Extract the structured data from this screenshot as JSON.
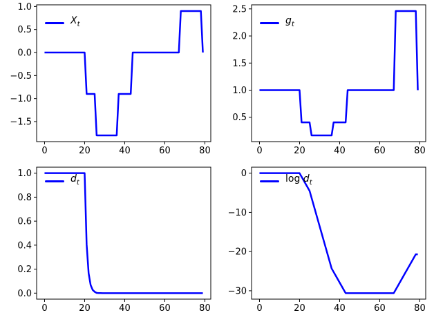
{
  "figure": {
    "background": "#ffffff",
    "line_color": "#0000ff",
    "line_width": 2.5,
    "spine_color": "#000000",
    "tick_label_color": "#000000"
  },
  "chart_data": {
    "type": "line",
    "layout_grid": "2x2",
    "grid": false,
    "legend_position": "upper left",
    "x": [
      0,
      1,
      2,
      3,
      4,
      5,
      6,
      7,
      8,
      9,
      10,
      11,
      12,
      13,
      14,
      15,
      16,
      17,
      18,
      19,
      20,
      21,
      22,
      23,
      24,
      25,
      26,
      27,
      28,
      29,
      30,
      31,
      32,
      33,
      34,
      35,
      36,
      37,
      38,
      39,
      40,
      41,
      42,
      43,
      44,
      45,
      46,
      47,
      48,
      49,
      50,
      51,
      52,
      53,
      54,
      55,
      56,
      57,
      58,
      59,
      60,
      61,
      62,
      63,
      64,
      65,
      66,
      67,
      68,
      69,
      70,
      71,
      72,
      73,
      74,
      75,
      76,
      77,
      78,
      79
    ],
    "xlim": [
      -3.95,
      82.95
    ],
    "xticks": {
      "values": [
        0,
        20,
        40,
        60,
        80
      ],
      "labels": [
        "0",
        "20",
        "40",
        "60",
        "80"
      ]
    },
    "plots": [
      {
        "name": "X_t",
        "legend": {
          "prefix": "",
          "symbol": "X",
          "subscript": "t"
        },
        "ylim": [
          -1.935,
          1.035
        ],
        "yticks": {
          "values": [
            1.0,
            0.5,
            0.0,
            -0.5,
            -1.0,
            -1.5
          ],
          "labels": [
            "1.0",
            "0.5",
            "0.0",
            "−0.5",
            "−1.0",
            "−1.5"
          ]
        },
        "y": [
          0,
          0,
          0,
          0,
          0,
          0,
          0,
          0,
          0,
          0,
          0,
          0,
          0,
          0,
          0,
          0,
          0,
          0,
          0,
          0,
          0,
          -0.9,
          -0.9,
          -0.9,
          -0.9,
          -0.9,
          -1.8,
          -1.8,
          -1.8,
          -1.8,
          -1.8,
          -1.8,
          -1.8,
          -1.8,
          -1.8,
          -1.8,
          -1.8,
          -0.9,
          -0.9,
          -0.9,
          -0.9,
          -0.9,
          -0.9,
          -0.9,
          0,
          0,
          0,
          0,
          0,
          0,
          0,
          0,
          0,
          0,
          0,
          0,
          0,
          0,
          0,
          0,
          0,
          0,
          0,
          0,
          0,
          0,
          0,
          0,
          0.9,
          0.9,
          0.9,
          0.9,
          0.9,
          0.9,
          0.9,
          0.9,
          0.9,
          0.9,
          0.9,
          0
        ]
      },
      {
        "name": "g_t",
        "legend": {
          "prefix": "",
          "symbol": "g",
          "subscript": "t"
        },
        "ylim": [
          0.0506,
          2.5743
        ],
        "yticks": {
          "values": [
            2.5,
            2.0,
            1.5,
            1.0,
            0.5
          ],
          "labels": [
            "2.5",
            "2.0",
            "1.5",
            "1.0",
            "0.5"
          ]
        },
        "y": [
          1,
          1,
          1,
          1,
          1,
          1,
          1,
          1,
          1,
          1,
          1,
          1,
          1,
          1,
          1,
          1,
          1,
          1,
          1,
          1,
          1,
          0.40657,
          0.40657,
          0.40657,
          0.40657,
          0.40657,
          0.1653,
          0.1653,
          0.1653,
          0.1653,
          0.1653,
          0.1653,
          0.1653,
          0.1653,
          0.1653,
          0.1653,
          0.1653,
          0.40657,
          0.40657,
          0.40657,
          0.40657,
          0.40657,
          0.40657,
          0.40657,
          1,
          1,
          1,
          1,
          1,
          1,
          1,
          1,
          1,
          1,
          1,
          1,
          1,
          1,
          1,
          1,
          1,
          1,
          1,
          1,
          1,
          1,
          1,
          1,
          2.4596,
          2.4596,
          2.4596,
          2.4596,
          2.4596,
          2.4596,
          2.4596,
          2.4596,
          2.4596,
          2.4596,
          2.4596,
          1
        ]
      },
      {
        "name": "d_t",
        "legend": {
          "prefix": "",
          "symbol": "d",
          "subscript": "t"
        },
        "ylim": [
          -0.05,
          1.05
        ],
        "yticks": {
          "values": [
            1.0,
            0.8,
            0.6,
            0.4,
            0.2,
            0.0
          ],
          "labels": [
            "1.0",
            "0.8",
            "0.6",
            "0.4",
            "0.2",
            "0.0"
          ]
        },
        "y": [
          1,
          1,
          1,
          1,
          1,
          1,
          1,
          1,
          1,
          1,
          1,
          1,
          1,
          1,
          1,
          1,
          1,
          1,
          1,
          1,
          1,
          0.40657,
          0.1653,
          0.067206,
          0.027324,
          0.011109,
          0.0018363,
          0.00030354,
          5.0175e-05,
          8.2938e-06,
          1.371e-06,
          2.2663e-07,
          3.7463e-08,
          6.1926e-09,
          1.0237e-09,
          1.6919e-10,
          2.7967e-11,
          1.137e-11,
          4.6231e-12,
          1.8795e-12,
          7.6414e-13,
          3.1067e-13,
          1.2631e-13,
          5.1352e-14,
          5.1352e-14,
          5.1352e-14,
          5.1352e-14,
          5.1352e-14,
          5.1352e-14,
          5.1352e-14,
          5.1352e-14,
          5.1352e-14,
          5.1352e-14,
          5.1352e-14,
          5.1352e-14,
          5.1352e-14,
          5.1352e-14,
          5.1352e-14,
          5.1352e-14,
          5.1352e-14,
          5.1352e-14,
          5.1352e-14,
          5.1352e-14,
          5.1352e-14,
          5.1352e-14,
          5.1352e-14,
          5.1352e-14,
          5.1352e-14,
          1.2631e-13,
          3.1067e-13,
          7.6414e-13,
          1.8795e-12,
          4.6231e-12,
          1.137e-11,
          2.7967e-11,
          6.8791e-11,
          1.6919e-10,
          4.1617e-10,
          1.0237e-09,
          1.0237e-09
        ]
      },
      {
        "name": "log d_t",
        "legend": {
          "prefix": "log ",
          "symbol": "d",
          "subscript": "t"
        },
        "ylim": [
          -32.13,
          1.53
        ],
        "yticks": {
          "values": [
            0,
            -10,
            -20,
            -30
          ],
          "labels": [
            "0",
            "−10",
            "−20",
            "−30"
          ]
        },
        "y": [
          0,
          0,
          0,
          0,
          0,
          0,
          0,
          0,
          0,
          0,
          0,
          0,
          0,
          0,
          0,
          0,
          0,
          0,
          0,
          0,
          0,
          -0.9,
          -1.8,
          -2.7,
          -3.6,
          -4.5,
          -6.3,
          -8.1,
          -9.9,
          -11.7,
          -13.5,
          -15.3,
          -17.1,
          -18.9,
          -20.7,
          -22.5,
          -24.3,
          -25.2,
          -26.1,
          -27,
          -27.9,
          -28.8,
          -29.7,
          -30.6,
          -30.6,
          -30.6,
          -30.6,
          -30.6,
          -30.6,
          -30.6,
          -30.6,
          -30.6,
          -30.6,
          -30.6,
          -30.6,
          -30.6,
          -30.6,
          -30.6,
          -30.6,
          -30.6,
          -30.6,
          -30.6,
          -30.6,
          -30.6,
          -30.6,
          -30.6,
          -30.6,
          -30.6,
          -29.7,
          -28.8,
          -27.9,
          -27,
          -26.1,
          -25.2,
          -24.3,
          -23.4,
          -22.5,
          -21.6,
          -20.7,
          -20.7
        ]
      }
    ]
  }
}
